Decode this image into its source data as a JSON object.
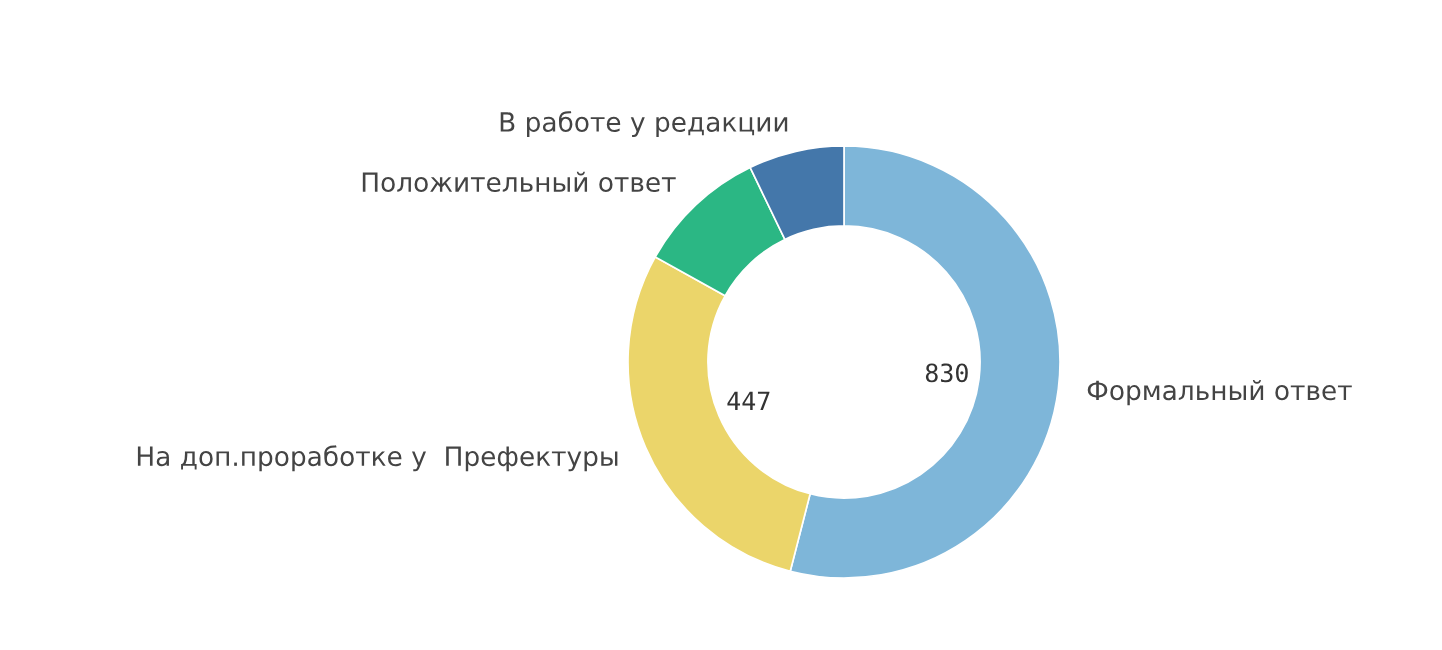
{
  "chart_data": {
    "type": "donut",
    "categories": [
      "Формальный ответ",
      "На доп.проработке у  Префектуры",
      "Положительный ответ",
      "В работе у редакции"
    ],
    "values": [
      830,
      447,
      150,
      110
    ],
    "value_labels": [
      "830",
      "447",
      null,
      null
    ],
    "colors": [
      "#7eb6d9",
      "#ebd56a",
      "#2bb784",
      "#4477aa"
    ],
    "legend": false
  }
}
